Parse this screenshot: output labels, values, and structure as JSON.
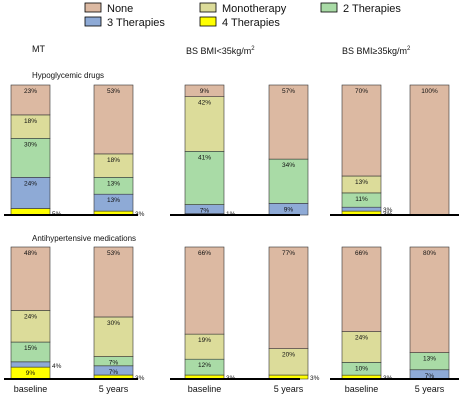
{
  "colors": {
    "None": "#dcb9a2",
    "Monotherapy": "#dcdc9a",
    "2 Therapies": "#a9dba6",
    "3 Therapies": "#8eaad6",
    "4 Therapies": "#ffff00"
  },
  "legend": {
    "items": [
      {
        "key": "None",
        "label": "None"
      },
      {
        "key": "Monotherapy",
        "label": "Monotherapy"
      },
      {
        "key": "2 Therapies",
        "label": "2 Therapies"
      },
      {
        "key": "3 Therapies",
        "label": "3 Therapies"
      },
      {
        "key": "4 Therapies",
        "label": "4 Therapies"
      }
    ]
  },
  "sections": [
    {
      "label": "Hypoglycemic drugs"
    },
    {
      "label": "Antihypertensive medications"
    }
  ],
  "columns": [
    {
      "title": "MT",
      "superscript": ""
    },
    {
      "title": "BS BMI<35kg/m",
      "superscript": "2"
    },
    {
      "title": "BS BMI≥35kg/m",
      "superscript": "2"
    }
  ],
  "chart_data": {
    "type": "bar",
    "stacked": true,
    "units": "percent",
    "stack_order_bottom_to_top": [
      "4 Therapies",
      "3 Therapies",
      "2 Therapies",
      "Monotherapy",
      "None"
    ],
    "categories": [
      "baseline",
      "5 years"
    ],
    "legend_position": "top",
    "panels": [
      {
        "section": "Hypoglycemic drugs",
        "group": "MT",
        "bars": [
          {
            "category": "baseline",
            "segments": [
              {
                "key": "4 Therapies",
                "value": 5,
                "label": "5%"
              },
              {
                "key": "3 Therapies",
                "value": 24,
                "label": "24%"
              },
              {
                "key": "2 Therapies",
                "value": 30,
                "label": "30%"
              },
              {
                "key": "Monotherapy",
                "value": 18,
                "label": "18%"
              },
              {
                "key": "None",
                "value": 23,
                "label": "23%"
              }
            ]
          },
          {
            "category": "5 years",
            "segments": [
              {
                "key": "4 Therapies",
                "value": 3,
                "label": "3%"
              },
              {
                "key": "3 Therapies",
                "value": 13,
                "label": "13%"
              },
              {
                "key": "2 Therapies",
                "value": 13,
                "label": "13%"
              },
              {
                "key": "Monotherapy",
                "value": 18,
                "label": "18%"
              },
              {
                "key": "None",
                "value": 53,
                "label": "53%"
              }
            ]
          }
        ]
      },
      {
        "section": "Hypoglycemic drugs",
        "group": "BS BMI<35kg/m2",
        "bars": [
          {
            "category": "baseline",
            "segments": [
              {
                "key": "4 Therapies",
                "value": 1,
                "label": "1%"
              },
              {
                "key": "3 Therapies",
                "value": 7,
                "label": "7%"
              },
              {
                "key": "2 Therapies",
                "value": 41,
                "label": "41%"
              },
              {
                "key": "Monotherapy",
                "value": 42,
                "label": "42%"
              },
              {
                "key": "None",
                "value": 9,
                "label": "9%"
              }
            ]
          },
          {
            "category": "5 years",
            "segments": [
              {
                "key": "3 Therapies",
                "value": 9,
                "label": "9%"
              },
              {
                "key": "2 Therapies",
                "value": 34,
                "label": "34%"
              },
              {
                "key": "None",
                "value": 57,
                "label": "57%"
              }
            ]
          }
        ]
      },
      {
        "section": "Hypoglycemic drugs",
        "group": "BS BMI≥35kg/m2",
        "bars": [
          {
            "category": "baseline",
            "segments": [
              {
                "key": "4 Therapies",
                "value": 3,
                "label": "3%"
              },
              {
                "key": "3 Therapies",
                "value": 3,
                "label": "3%"
              },
              {
                "key": "2 Therapies",
                "value": 11,
                "label": "11%"
              },
              {
                "key": "Monotherapy",
                "value": 13,
                "label": "13%"
              },
              {
                "key": "None",
                "value": 70,
                "label": "70%"
              }
            ]
          },
          {
            "category": "5 years",
            "segments": [
              {
                "key": "None",
                "value": 100,
                "label": "100%"
              }
            ]
          }
        ]
      },
      {
        "section": "Antihypertensive medications",
        "group": "MT",
        "bars": [
          {
            "category": "baseline",
            "segments": [
              {
                "key": "4 Therapies",
                "value": 9,
                "label": "9%"
              },
              {
                "key": "3 Therapies",
                "value": 4,
                "label": "4%"
              },
              {
                "key": "2 Therapies",
                "value": 15,
                "label": "15%"
              },
              {
                "key": "Monotherapy",
                "value": 24,
                "label": "24%"
              },
              {
                "key": "None",
                "value": 48,
                "label": "48%"
              }
            ]
          },
          {
            "category": "5 years",
            "segments": [
              {
                "key": "4 Therapies",
                "value": 3,
                "label": "3%"
              },
              {
                "key": "3 Therapies",
                "value": 7,
                "label": "7%"
              },
              {
                "key": "2 Therapies",
                "value": 7,
                "label": "7%"
              },
              {
                "key": "Monotherapy",
                "value": 30,
                "label": "30%"
              },
              {
                "key": "None",
                "value": 53,
                "label": "53%"
              }
            ]
          }
        ]
      },
      {
        "section": "Antihypertensive medications",
        "group": "BS BMI<35kg/m2",
        "bars": [
          {
            "category": "baseline",
            "segments": [
              {
                "key": "4 Therapies",
                "value": 3,
                "label": "3%"
              },
              {
                "key": "2 Therapies",
                "value": 12,
                "label": "12%"
              },
              {
                "key": "Monotherapy",
                "value": 19,
                "label": "19%"
              },
              {
                "key": "None",
                "value": 66,
                "label": "66%"
              }
            ]
          },
          {
            "category": "5 years",
            "segments": [
              {
                "key": "4 Therapies",
                "value": 3,
                "label": "3%"
              },
              {
                "key": "Monotherapy",
                "value": 20,
                "label": "20%"
              },
              {
                "key": "None",
                "value": 77,
                "label": "77%"
              }
            ]
          }
        ]
      },
      {
        "section": "Antihypertensive medications",
        "group": "BS BMI≥35kg/m2",
        "bars": [
          {
            "category": "baseline",
            "segments": [
              {
                "key": "4 Therapies",
                "value": 3,
                "label": "3%"
              },
              {
                "key": "2 Therapies",
                "value": 10,
                "label": "10%"
              },
              {
                "key": "Monotherapy",
                "value": 24,
                "label": "24%"
              },
              {
                "key": "None",
                "value": 66,
                "label": "66%"
              }
            ]
          },
          {
            "category": "5 years",
            "segments": [
              {
                "key": "3 Therapies",
                "value": 7,
                "label": "7%"
              },
              {
                "key": "2 Therapies",
                "value": 13,
                "label": "13%"
              },
              {
                "key": "None",
                "value": 80,
                "label": "80%"
              }
            ]
          }
        ]
      }
    ]
  }
}
